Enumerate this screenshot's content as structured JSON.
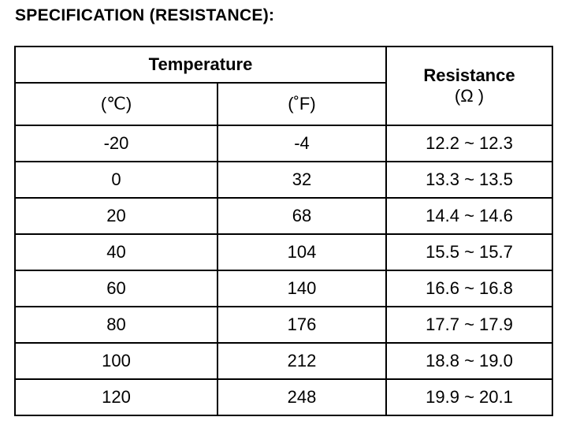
{
  "title": "SPECIFICATION (RESISTANCE):",
  "table": {
    "header": {
      "group": "Temperature",
      "resistance": "Resistance",
      "resistance_unit": "(Ω )",
      "celsius": "(℃)",
      "fahrenheit": "(˚F)"
    },
    "rows": [
      [
        "-20",
        "-4",
        "12.2 ~ 12.3"
      ],
      [
        "0",
        "32",
        "13.3 ~ 13.5"
      ],
      [
        "20",
        "68",
        "14.4 ~ 14.6"
      ],
      [
        "40",
        "104",
        "15.5 ~ 15.7"
      ],
      [
        "60",
        "140",
        "16.6 ~ 16.8"
      ],
      [
        "80",
        "176",
        "17.7 ~ 17.9"
      ],
      [
        "100",
        "212",
        "18.8 ~ 19.0"
      ],
      [
        "120",
        "248",
        "19.9 ~ 20.1"
      ]
    ]
  }
}
